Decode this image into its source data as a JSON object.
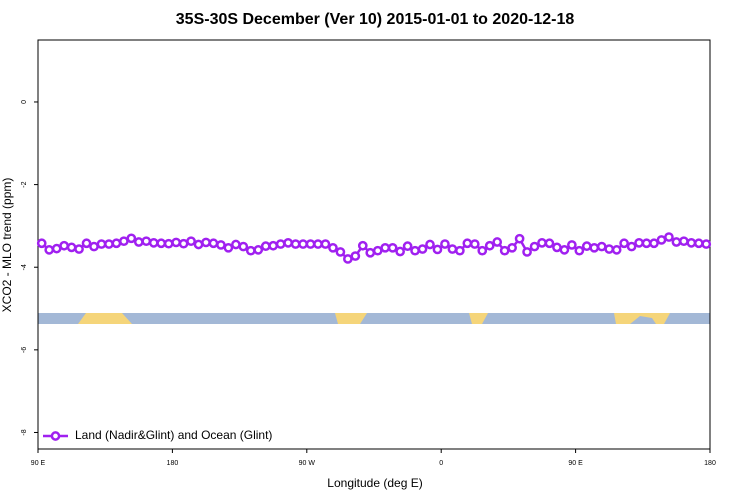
{
  "chart_data": {
    "type": "line",
    "title": "35S-30S December (Ver 10)   2015-01-01 to 2020-12-18",
    "x_label": "Longitude (deg E)",
    "y_label": "XCO2 - MLO trend (ppm)",
    "xlim": [
      90,
      540
    ],
    "ylim": [
      -8.4,
      1.5
    ],
    "xticks": [
      {
        "value": 90,
        "label": "90 E"
      },
      180,
      {
        "value": 270,
        "label": "90 W"
      },
      {
        "value": 360,
        "label": "0"
      },
      {
        "value": 450,
        "label": "90 E"
      },
      {
        "value": 540,
        "label": "180"
      }
    ],
    "yticks": [
      0,
      -2,
      -4,
      -6,
      -8
    ],
    "legend_position": "bottom-left",
    "x": [
      92.5,
      97.5,
      102.5,
      107.5,
      112.5,
      117.5,
      122.5,
      127.5,
      132.5,
      137.5,
      142.5,
      147.5,
      152.5,
      157.5,
      162.5,
      167.5,
      172.5,
      177.5,
      182.5,
      187.5,
      192.5,
      197.5,
      202.5,
      207.5,
      212.5,
      217.5,
      222.5,
      227.5,
      232.5,
      237.5,
      242.5,
      247.5,
      252.5,
      257.5,
      262.5,
      267.5,
      272.5,
      277.5,
      282.5,
      287.5,
      292.5,
      297.5,
      302.5,
      307.5,
      312.5,
      317.5,
      322.5,
      327.5,
      332.5,
      337.5,
      342.5,
      347.5,
      352.5,
      357.5,
      362.5,
      367.5,
      372.5,
      377.5,
      382.5,
      387.5,
      392.5,
      397.5,
      402.5,
      407.5,
      412.5,
      417.5,
      422.5,
      427.5,
      432.5,
      437.5,
      442.5,
      447.5,
      452.5,
      457.5,
      462.5,
      467.5,
      472.5,
      477.5,
      482.5,
      487.5,
      492.5,
      497.5,
      502.5,
      507.5,
      512.5,
      517.5,
      522.5,
      527.5,
      532.5,
      537.5
    ],
    "series": [
      {
        "name": "Land (Nadir&Glint) and Ocean (Glint)",
        "color": "#a020f0",
        "values": [
          -3.42,
          -3.58,
          -3.55,
          -3.48,
          -3.52,
          -3.56,
          -3.42,
          -3.5,
          -3.44,
          -3.44,
          -3.42,
          -3.37,
          -3.3,
          -3.39,
          -3.37,
          -3.41,
          -3.42,
          -3.43,
          -3.4,
          -3.43,
          -3.37,
          -3.45,
          -3.4,
          -3.42,
          -3.46,
          -3.53,
          -3.45,
          -3.5,
          -3.6,
          -3.58,
          -3.49,
          -3.48,
          -3.44,
          -3.41,
          -3.44,
          -3.44,
          -3.44,
          -3.44,
          -3.44,
          -3.53,
          -3.63,
          -3.8,
          -3.73,
          -3.48,
          -3.65,
          -3.6,
          -3.53,
          -3.53,
          -3.62,
          -3.49,
          -3.6,
          -3.56,
          -3.45,
          -3.57,
          -3.44,
          -3.56,
          -3.6,
          -3.42,
          -3.44,
          -3.6,
          -3.48,
          -3.39,
          -3.6,
          -3.53,
          -3.31,
          -3.63,
          -3.5,
          -3.41,
          -3.42,
          -3.52,
          -3.58,
          -3.46,
          -3.6,
          -3.49,
          -3.53,
          -3.5,
          -3.56,
          -3.58,
          -3.42,
          -3.5,
          -3.41,
          -3.42,
          -3.42,
          -3.34,
          -3.27,
          -3.39,
          -3.37,
          -3.41,
          -3.42,
          -3.44
        ]
      }
    ]
  }
}
